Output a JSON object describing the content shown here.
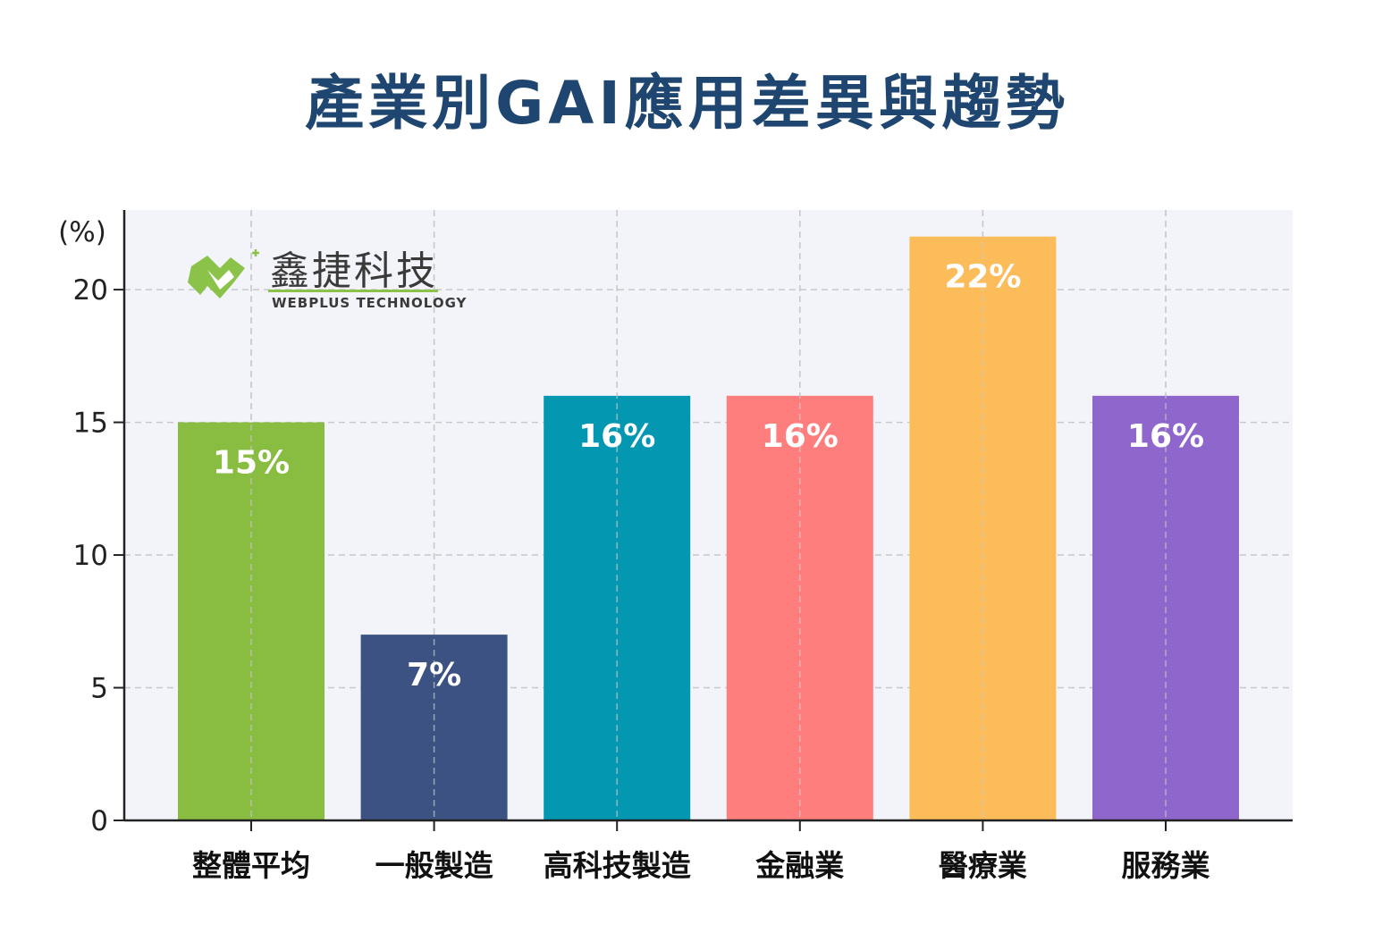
{
  "title": "產業別GAI應用差異與趨勢",
  "logo": {
    "name_zh": "鑫捷科技",
    "name_en": "WEBPLUS TECHNOLOGY",
    "icon": "webplus-logo-icon",
    "color": "#8bc34a"
  },
  "chart_data": {
    "type": "bar",
    "title": "產業別GAI應用差異與趨勢",
    "ylabel": "(%)",
    "xlabel": "",
    "categories": [
      "整體平均",
      "一般製造",
      "高科技製造",
      "金融業",
      "醫療業",
      "服務業"
    ],
    "values": [
      15,
      7,
      16,
      16,
      22,
      16
    ],
    "value_labels": [
      "15%",
      "7%",
      "16%",
      "16%",
      "22%",
      "16%"
    ],
    "colors": [
      "#88bd41",
      "#3b5282",
      "#0397b2",
      "#fe7e7d",
      "#fdbc5a",
      "#8f66cb"
    ],
    "ylim": [
      0,
      23
    ],
    "yticks": [
      0,
      5,
      10,
      15,
      20
    ],
    "grid": true,
    "plot_background": "#f3f4f9"
  }
}
